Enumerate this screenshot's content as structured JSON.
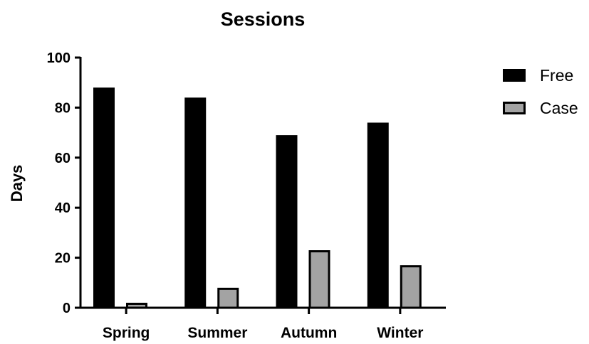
{
  "chart_data": {
    "type": "bar",
    "title": "Sessions",
    "xlabel": "",
    "ylabel": "Days",
    "ylim": [
      0,
      100
    ],
    "yticks": [
      0,
      20,
      40,
      60,
      80,
      100
    ],
    "categories": [
      "Spring",
      "Summer",
      "Autumn",
      "Winter"
    ],
    "series": [
      {
        "name": "Free",
        "values": [
          88,
          84,
          69,
          74
        ],
        "color": "#000000"
      },
      {
        "name": "Case",
        "values": [
          2,
          8,
          23,
          17
        ],
        "color": "#a3a3a3"
      }
    ],
    "legend_position": "top-right",
    "grid": false
  }
}
